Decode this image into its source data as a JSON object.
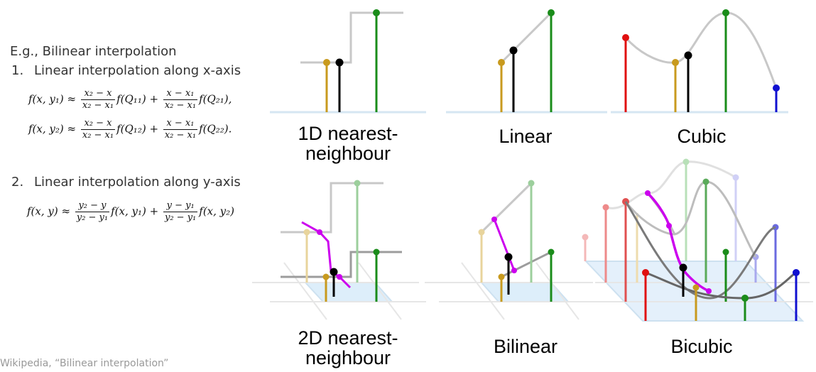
{
  "intro": "E.g., Bilinear interpolation",
  "steps": [
    {
      "num": "1.",
      "text": "Linear interpolation along x-axis"
    },
    {
      "num": "2.",
      "text": "Linear interpolation along y-axis"
    }
  ],
  "formulas": {
    "f1": {
      "lhs": "f(x, y₁) ≈",
      "a_num": "x₂ − x",
      "a_den": "x₂ − x₁",
      "a_f": "f(Q₁₁) +",
      "b_num": "x − x₁",
      "b_den": "x₂ − x₁",
      "b_f": "f(Q₂₁),"
    },
    "f2": {
      "lhs": "f(x, y₂) ≈",
      "a_num": "x₂ − x",
      "a_den": "x₂ − x₁",
      "a_f": "f(Q₁₂) +",
      "b_num": "x − x₁",
      "b_den": "x₂ − x₁",
      "b_f": "f(Q₂₂)."
    },
    "f3": {
      "lhs": "f(x, y) ≈",
      "a_num": "y₂ − y",
      "a_den": "y₂ − y₁",
      "a_f": "f(x, y₁) +",
      "b_num": "y − y₁",
      "b_den": "y₂ − y₁",
      "b_f": "f(x, y₂)"
    }
  },
  "credit": "Wikipedia, “Bilinear interpolation”",
  "panels": {
    "nn1d": "1D nearest-\nneighbour",
    "linear": "Linear",
    "cubic": "Cubic",
    "nn2d": "2D nearest-\nneighbour",
    "bilinear": "Bilinear",
    "bicubic": "Bicubic"
  },
  "colors": {
    "gold": "#c89a1e",
    "green": "#1a8c1a",
    "red": "#e01010",
    "blue": "#1010d0",
    "magenta": "#cc00ee",
    "gray_curve": "#c8c8c8",
    "axis": "#d6e6f2"
  }
}
